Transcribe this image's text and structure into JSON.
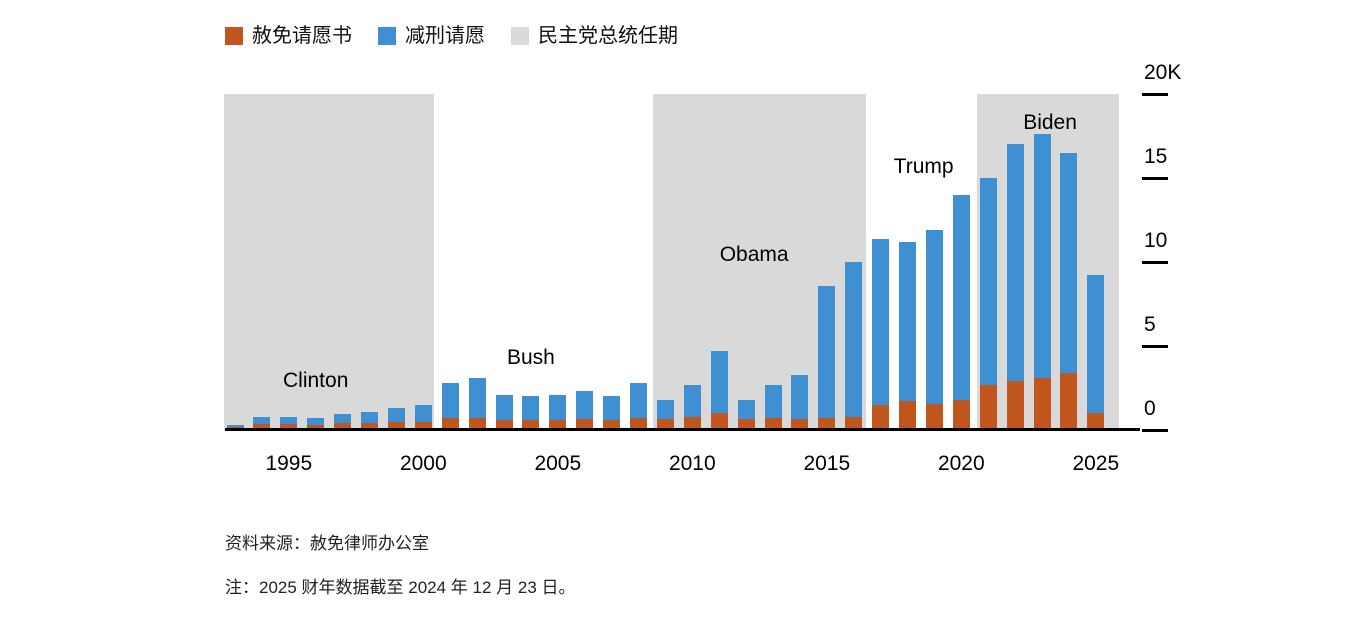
{
  "legend": {
    "items": [
      {
        "label": "赦免请愿书",
        "color": "#c0561d"
      },
      {
        "label": "减刑请愿",
        "color": "#3e90d2"
      },
      {
        "label": "民主党总统任期",
        "color": "#d9d9d9"
      }
    ]
  },
  "chart_data": {
    "type": "bar",
    "stacked": true,
    "x_years": [
      1993,
      1994,
      1995,
      1996,
      1997,
      1998,
      1999,
      2000,
      2001,
      2002,
      2003,
      2004,
      2005,
      2006,
      2007,
      2008,
      2009,
      2010,
      2011,
      2012,
      2013,
      2014,
      2015,
      2016,
      2017,
      2018,
      2019,
      2020,
      2021,
      2022,
      2023,
      2024,
      2025
    ],
    "series": [
      {
        "name": "赦免请愿书",
        "color": "#c0561d",
        "values": [
          150,
          350,
          350,
          300,
          400,
          400,
          450,
          500,
          700,
          700,
          600,
          600,
          600,
          650,
          600,
          700,
          650,
          800,
          1000,
          650,
          700,
          650,
          700,
          800,
          1500,
          1700,
          1550,
          1800,
          2700,
          2900,
          3100,
          3400,
          1000
        ]
      },
      {
        "name": "减刑请愿",
        "color": "#3e90d2",
        "values": [
          150,
          450,
          450,
          400,
          550,
          700,
          850,
          1000,
          2100,
          2400,
          1500,
          1400,
          1500,
          1650,
          1400,
          2100,
          1150,
          1900,
          3700,
          1150,
          2000,
          2650,
          7900,
          9200,
          9900,
          9500,
          10350,
          12200,
          12300,
          14100,
          14500,
          13100,
          8200
        ]
      }
    ],
    "ylim": [
      0,
      20000
    ],
    "yticks": [
      {
        "value": 20000,
        "label": "20K"
      },
      {
        "value": 15000,
        "label": "15"
      },
      {
        "value": 10000,
        "label": "10"
      },
      {
        "value": 5000,
        "label": "5"
      },
      {
        "value": 0,
        "label": "0"
      }
    ],
    "xticks": [
      1995,
      2000,
      2005,
      2010,
      2015,
      2020,
      2025
    ],
    "bands": [
      {
        "label": "Clinton",
        "start_year": 1992.6,
        "end_year": 2000.4,
        "label_year": 1996.0,
        "label_y": 276
      },
      {
        "label": "Obama",
        "start_year": 2008.55,
        "end_year": 2016.45,
        "label_year": 2012.3,
        "label_y": 150
      },
      {
        "label": "Biden",
        "start_year": 2020.6,
        "end_year": 2025.85,
        "label_year": 2023.3,
        "label_y": 18
      }
    ],
    "annotations": [
      {
        "label": "Bush",
        "label_year": 2004.0,
        "label_y": 253
      },
      {
        "label": "Trump",
        "label_year": 2018.6,
        "label_y": 62
      }
    ],
    "legend_position": "top-left",
    "grid": false,
    "y_axis_side": "right"
  },
  "source": "资料来源：赦免律师办公室",
  "note": "注：2025 财年数据截至 2024 年 12 月 23 日。"
}
